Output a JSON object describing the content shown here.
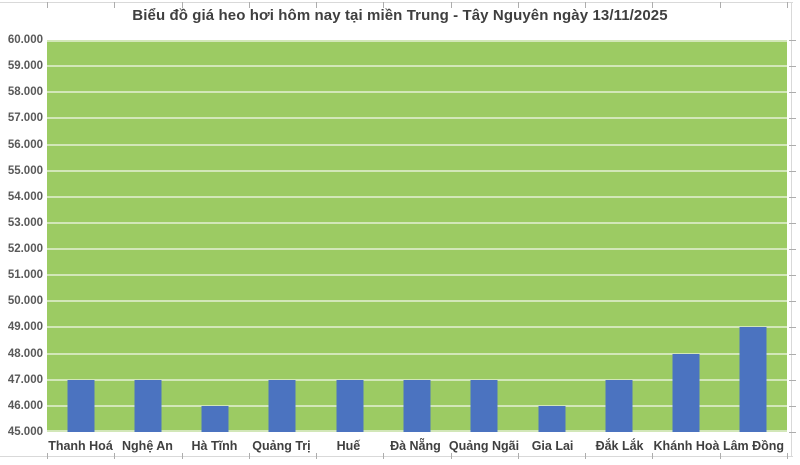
{
  "chart_data": {
    "type": "bar",
    "title": "Biểu đồ giá heo hơi hôm nay tại miền Trung - Tây Nguyên ngày 13/11/2025",
    "categories": [
      "Thanh Hoá",
      "Nghệ An",
      "Hà Tĩnh",
      "Quảng Trị",
      "Huế",
      "Đà Nẵng",
      "Quảng Ngãi",
      "Gia Lai",
      "Đắk Lắk",
      "Khánh Hoà",
      "Lâm Đồng"
    ],
    "values": [
      47000,
      47000,
      46000,
      47000,
      47000,
      47000,
      47000,
      46000,
      47000,
      48000,
      49000
    ],
    "xlabel": "",
    "ylabel": "",
    "ylim": [
      45000,
      60000
    ],
    "ytick_step": 1000,
    "ytick_labels": [
      "45.000",
      "46.000",
      "47.000",
      "48.000",
      "49.000",
      "50.000",
      "51.000",
      "52.000",
      "53.000",
      "54.000",
      "55.000",
      "56.000",
      "57.000",
      "58.000",
      "59.000",
      "60.000"
    ],
    "grid": "horizontal",
    "legend": "none",
    "colors": {
      "bar": "#4B73C0",
      "plot_background": "#9CCB63",
      "gridline": "rgba(255,255,255,0.55)",
      "title_text": "#3F3F3F",
      "x_label_text": "#404040",
      "y_label_text": "#595959",
      "frame_line": "#D9D9D9",
      "tick_mark": "#ADADAD"
    }
  }
}
